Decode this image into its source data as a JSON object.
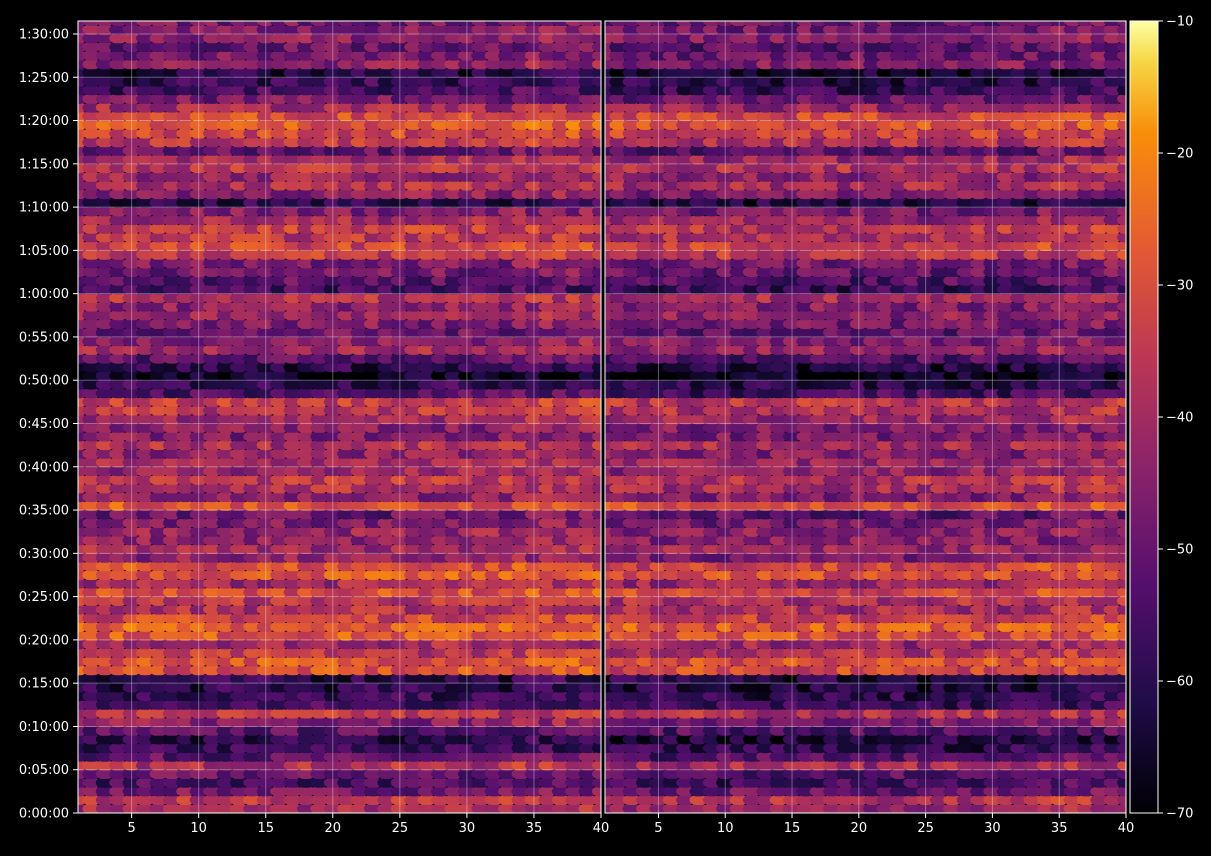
{
  "chart_data": {
    "type": "heatmap",
    "title": "",
    "xlabel": "",
    "ylabel": "",
    "panels": [
      {
        "name": "",
        "x_ticks": [
          5,
          10,
          15,
          20,
          25,
          30,
          35,
          40
        ],
        "x_range": [
          1,
          40
        ]
      },
      {
        "name": "",
        "x_ticks": [
          5,
          10,
          15,
          20,
          25,
          30,
          35,
          40
        ],
        "x_range": [
          1,
          40
        ]
      }
    ],
    "y_ticks": [
      "0:00:00",
      "0:05:00",
      "0:10:00",
      "0:15:00",
      "0:20:00",
      "0:25:00",
      "0:30:00",
      "0:35:00",
      "0:40:00",
      "0:45:00",
      "0:50:00",
      "0:55:00",
      "1:00:00",
      "1:05:00",
      "1:10:00",
      "1:15:00",
      "1:20:00",
      "1:25:00",
      "1:30:00"
    ],
    "y_range_minutes": [
      0,
      91.5
    ],
    "grid": true,
    "colorbar": {
      "colormap": "inferno",
      "range": [
        -70,
        -10
      ],
      "ticks": [
        "−70",
        "−60",
        "−50",
        "−40",
        "−30",
        "−20",
        "−10"
      ]
    },
    "row_profile": {
      "minutes": [
        0,
        1,
        2,
        3,
        4,
        5,
        6,
        7,
        8,
        9,
        10,
        11,
        12,
        13,
        14,
        15,
        16,
        17,
        18,
        19,
        20,
        21,
        22,
        23,
        24,
        25,
        26,
        27,
        28,
        29,
        30,
        31,
        32,
        33,
        34,
        35,
        36,
        37,
        38,
        39,
        40,
        41,
        42,
        43,
        44,
        45,
        46,
        47,
        48,
        49,
        50,
        51,
        52,
        53,
        54,
        55,
        56,
        57,
        58,
        59,
        60,
        61,
        62,
        63,
        64,
        65,
        66,
        67,
        68,
        69,
        70,
        71,
        72,
        73,
        74,
        75,
        76,
        77,
        78,
        79,
        80,
        81,
        82,
        83,
        84,
        85,
        86,
        87,
        88,
        89,
        90,
        91
      ],
      "mean_level_dB": [
        -40,
        -36,
        -48,
        -55,
        -50,
        -38,
        -52,
        -58,
        -60,
        -52,
        -44,
        -36,
        -56,
        -58,
        -60,
        -60,
        -30,
        -28,
        -36,
        -40,
        -28,
        -26,
        -32,
        -38,
        -36,
        -30,
        -40,
        -28,
        -30,
        -44,
        -40,
        -44,
        -42,
        -46,
        -50,
        -28,
        -44,
        -38,
        -36,
        -42,
        -40,
        -44,
        -38,
        -46,
        -44,
        -40,
        -36,
        -34,
        -54,
        -58,
        -66,
        -60,
        -52,
        -40,
        -44,
        -50,
        -46,
        -42,
        -44,
        -38,
        -56,
        -52,
        -48,
        -46,
        -34,
        -32,
        -36,
        -34,
        -40,
        -46,
        -60,
        -44,
        -38,
        -42,
        -36,
        -40,
        -50,
        -36,
        -32,
        -28,
        -30,
        -40,
        -48,
        -56,
        -58,
        -62,
        -44,
        -48,
        -50,
        -44,
        -46,
        -48
      ]
    }
  }
}
